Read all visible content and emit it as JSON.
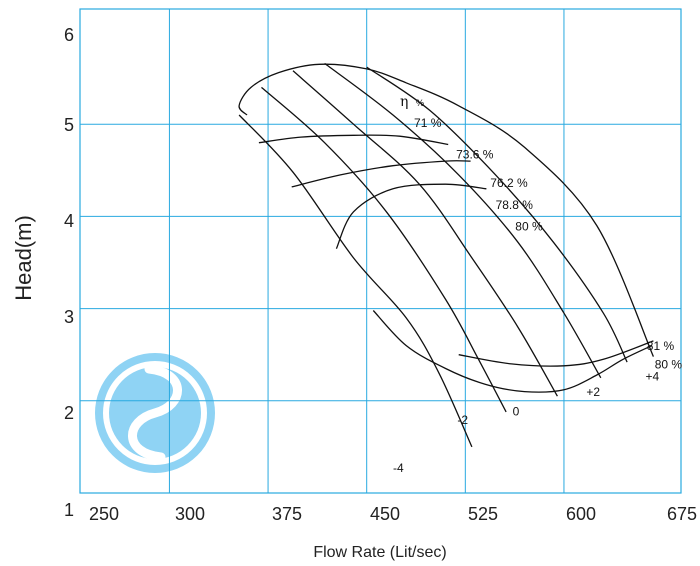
{
  "chart_data": {
    "type": "line",
    "title": "",
    "xlabel": "Flow Rate (Lit/sec)",
    "ylabel": "Head(m)",
    "xlim": [
      232,
      689
    ],
    "ylim": [
      1,
      6.25
    ],
    "x_ticks": [
      "250",
      "300",
      "375",
      "450",
      "525",
      "600",
      "675"
    ],
    "y_ticks": [
      "1",
      "2",
      "3",
      "4",
      "5",
      "6"
    ],
    "grid": true,
    "colors": {
      "grid": "#29a9e0",
      "curves": "#111111",
      "logo": "#8fd3f4"
    },
    "efficiency_header": {
      "symbol": "η",
      "unit": "%"
    },
    "curve_labels": [
      {
        "text": "71 %",
        "x": 486,
        "y": 4.97
      },
      {
        "text": "73.6 %",
        "x": 518,
        "y": 4.63
      },
      {
        "text": "76.2 %",
        "x": 544,
        "y": 4.32
      },
      {
        "text": "78.8 %",
        "x": 548,
        "y": 4.08
      },
      {
        "text": "80 %",
        "x": 563,
        "y": 3.85
      },
      {
        "text": "81 %",
        "x": 663,
        "y": 2.55
      },
      {
        "text": "80 %",
        "x": 669,
        "y": 2.35
      },
      {
        "text": "+4",
        "x": 662,
        "y": 2.22
      },
      {
        "text": "+2",
        "x": 617,
        "y": 2.05
      },
      {
        "text": "0",
        "x": 561,
        "y": 1.84
      },
      {
        "text": "-2",
        "x": 519,
        "y": 1.75
      },
      {
        "text": "-4",
        "x": 470,
        "y": 1.23
      }
    ],
    "series": [
      {
        "name": "",
        "kind": "envelope",
        "x": [
          359,
          353,
          362,
          383,
          414,
          450,
          480,
          520,
          570,
          625,
          668
        ],
        "y": [
          5.1,
          5.2,
          5.4,
          5.56,
          5.65,
          5.6,
          5.45,
          5.2,
          4.75,
          3.9,
          2.48
        ]
      },
      {
        "name": "-4",
        "x": [
          353,
          394,
          440,
          480,
          505,
          530
        ],
        "y": [
          5.1,
          4.48,
          3.55,
          2.9,
          2.3,
          1.5
        ]
      },
      {
        "name": "-2",
        "x": [
          370,
          418,
          465,
          510,
          535,
          556
        ],
        "y": [
          5.4,
          4.8,
          4.05,
          3.1,
          2.45,
          1.88
        ]
      },
      {
        "name": "0",
        "x": [
          394,
          440,
          490,
          530,
          565,
          595
        ],
        "y": [
          5.58,
          5.0,
          4.35,
          3.55,
          2.8,
          2.05
        ]
      },
      {
        "name": "+2",
        "x": [
          418,
          470,
          520,
          565,
          600,
          628
        ],
        "y": [
          5.66,
          5.1,
          4.45,
          3.72,
          2.95,
          2.25
        ]
      },
      {
        "name": "+4",
        "x": [
          450,
          498,
          548,
          592,
          630,
          648
        ],
        "y": [
          5.62,
          5.15,
          4.45,
          3.72,
          2.95,
          2.42
        ]
      },
      {
        "name": "71 %",
        "x": [
          368,
          400,
          440,
          475,
          512
        ],
        "y": [
          4.8,
          4.86,
          4.88,
          4.87,
          4.78
        ]
      },
      {
        "name": "73.6 %",
        "x": [
          393,
          430,
          470,
          510,
          529
        ],
        "y": [
          4.32,
          4.45,
          4.55,
          4.6,
          4.6
        ]
      },
      {
        "name": "76.2 %",
        "x": [
          427,
          440,
          470,
          510,
          541
        ],
        "y": [
          3.65,
          4.05,
          4.3,
          4.35,
          4.3
        ]
      },
      {
        "name": "81 %",
        "x": [
          455,
          480,
          510,
          540,
          570,
          600,
          625,
          645,
          667
        ],
        "y": [
          2.98,
          2.6,
          2.35,
          2.18,
          2.1,
          2.12,
          2.28,
          2.45,
          2.6
        ]
      },
      {
        "name": "80 %",
        "x": [
          520,
          560,
          600,
          630,
          668
        ],
        "y": [
          2.5,
          2.4,
          2.38,
          2.45,
          2.65
        ]
      }
    ]
  }
}
